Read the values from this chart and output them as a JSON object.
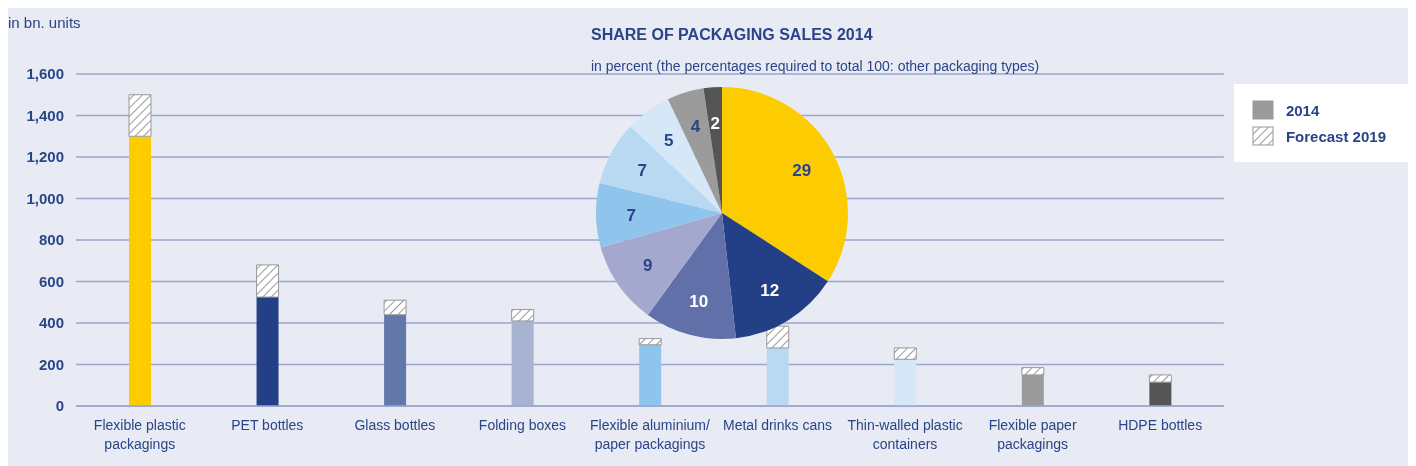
{
  "chart_data": [
    {
      "type": "bar",
      "ylabel": "in bn. units",
      "categories": [
        "Flexible plastic packagings",
        "PET bottles",
        "Glass bottles",
        "Folding boxes",
        "Flexible aluminium/ paper packagings",
        "Metal drinks cans",
        "Thin-walled plastic containers",
        "Flexible paper packagings",
        "HDPE bottles"
      ],
      "series": [
        {
          "name": "2014",
          "color": "#9b9b9b",
          "colors": [
            "#fdcc00",
            "#233f85",
            "#6378aa",
            "#a8b3d1",
            "#8fc5ec",
            "#b9d9f3",
            "#d6e7f8",
            "#9b9b9b",
            "#555555"
          ],
          "values": [
            1300,
            525,
            440,
            410,
            295,
            280,
            225,
            150,
            115
          ]
        },
        {
          "name": "Forecast 2019",
          "color": "#999999",
          "values": [
            200,
            155,
            70,
            55,
            30,
            105,
            55,
            35,
            35
          ]
        }
      ],
      "stacked": true,
      "ylim": [
        0,
        1600
      ],
      "yticks": [
        0,
        200,
        400,
        600,
        800,
        {
          "value": 1000,
          "label": "1,000"
        },
        {
          "value": 1200,
          "label": "1,200"
        },
        {
          "value": 1400,
          "label": "1,400"
        },
        {
          "value": 1600,
          "label": "1,600"
        }
      ],
      "grid": "y",
      "legend": "top right"
    },
    {
      "type": "pie",
      "title": "SHARE OF PACKAGING SALES 2014",
      "subtitle": "in percent (the percentages required to total 100: other packaging types)",
      "categories": [
        null,
        null,
        null,
        null,
        null,
        null,
        null,
        null,
        null
      ],
      "values": [
        29,
        12,
        10,
        9,
        7,
        7,
        5,
        4,
        2
      ],
      "colors": [
        "#fdcc00",
        "#233f85",
        "#6170a8",
        "#a4a8cf",
        "#8fc5ec",
        "#b9d9f3",
        "#d6e7f8",
        "#9b9b9b",
        "#555555"
      ],
      "data_labels": true
    }
  ]
}
